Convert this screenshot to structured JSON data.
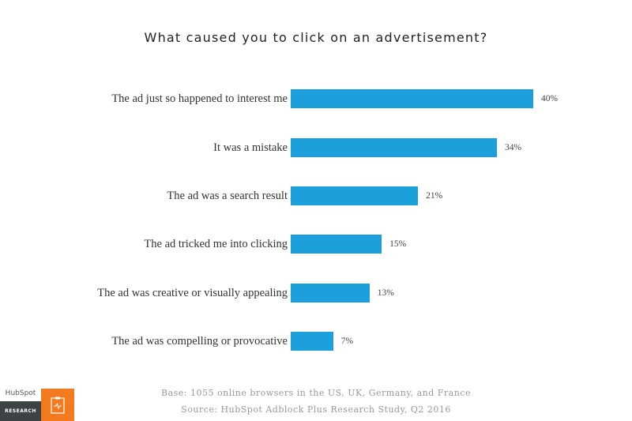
{
  "chart_data": {
    "type": "bar",
    "orientation": "horizontal",
    "title": "What caused you to click on an advertisement?",
    "categories": [
      "The ad just so happened to interest me",
      "It was a mistake",
      "The ad was a search result",
      "The ad tricked me into clicking",
      "The ad was creative or visually appealing",
      "The ad was compelling or provocative"
    ],
    "values": [
      40,
      34,
      21,
      15,
      13,
      7
    ],
    "value_labels": [
      "40%",
      "34%",
      "21%",
      "15%",
      "13%",
      "7%"
    ],
    "xlabel": "",
    "ylabel": "",
    "xlim": [
      0,
      40
    ],
    "grid": false,
    "legend": "none",
    "bar_color": "#1ca0dc"
  },
  "footer": {
    "base": "Base: 1055 online browsers in the US, UK, Germany, and France",
    "source": "Source: HubSpot Adblock Plus Research Study, Q2 2016"
  },
  "logo": {
    "brand": "HubSpot",
    "tag": "RESEARCH",
    "badge_color": "#f47a20"
  }
}
